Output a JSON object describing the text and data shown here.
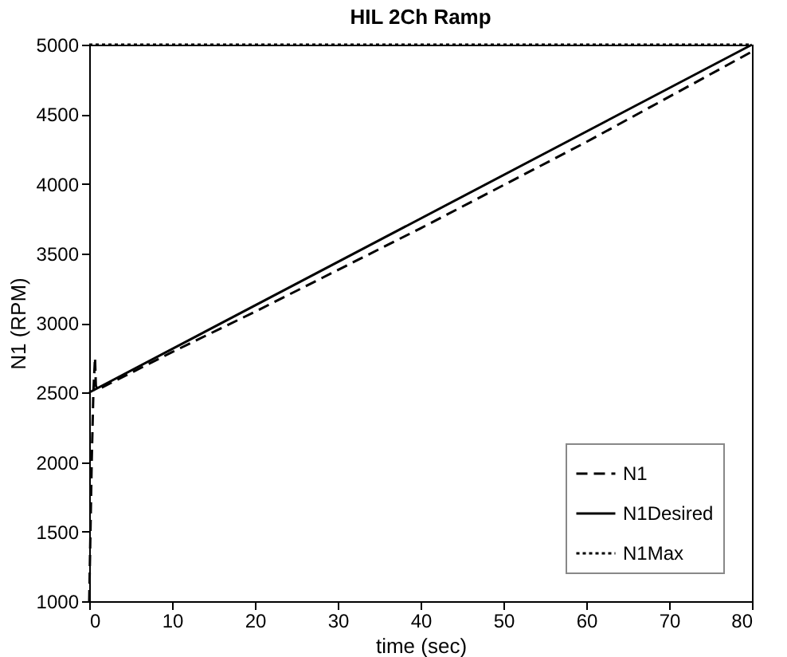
{
  "chart_data": {
    "type": "line",
    "title": "HIL 2Ch Ramp",
    "xlabel": "time (sec)",
    "ylabel": "N1 (RPM)",
    "xlim": [
      0,
      80
    ],
    "xticks": [
      0,
      10,
      20,
      30,
      40,
      50,
      60,
      70,
      80
    ],
    "ylim": [
      1000,
      5000
    ],
    "yticks": [
      1000,
      1500,
      2000,
      2500,
      3000,
      3500,
      4000,
      4500,
      5000
    ],
    "grid": false,
    "legend": "bottom right",
    "series": [
      {
        "name": "N1",
        "color": "#000000",
        "line_style": "dashed",
        "x": [
          0,
          0.3,
          0.5,
          0.7,
          0.8,
          1,
          10,
          20,
          40,
          60,
          80
        ],
        "values": [
          1000,
          2000,
          2500,
          2750,
          2550,
          2520,
          2790,
          3080,
          3680,
          4300,
          4950
        ]
      },
      {
        "name": "N1Desired",
        "color": "#000000",
        "line_style": "solid",
        "x": [
          0,
          80
        ],
        "values": [
          2500,
          5000
        ]
      },
      {
        "name": "N1Max",
        "color": "#000000",
        "line_style": "dotted",
        "x": [
          0,
          80
        ],
        "values": [
          5000,
          5000
        ]
      }
    ]
  }
}
